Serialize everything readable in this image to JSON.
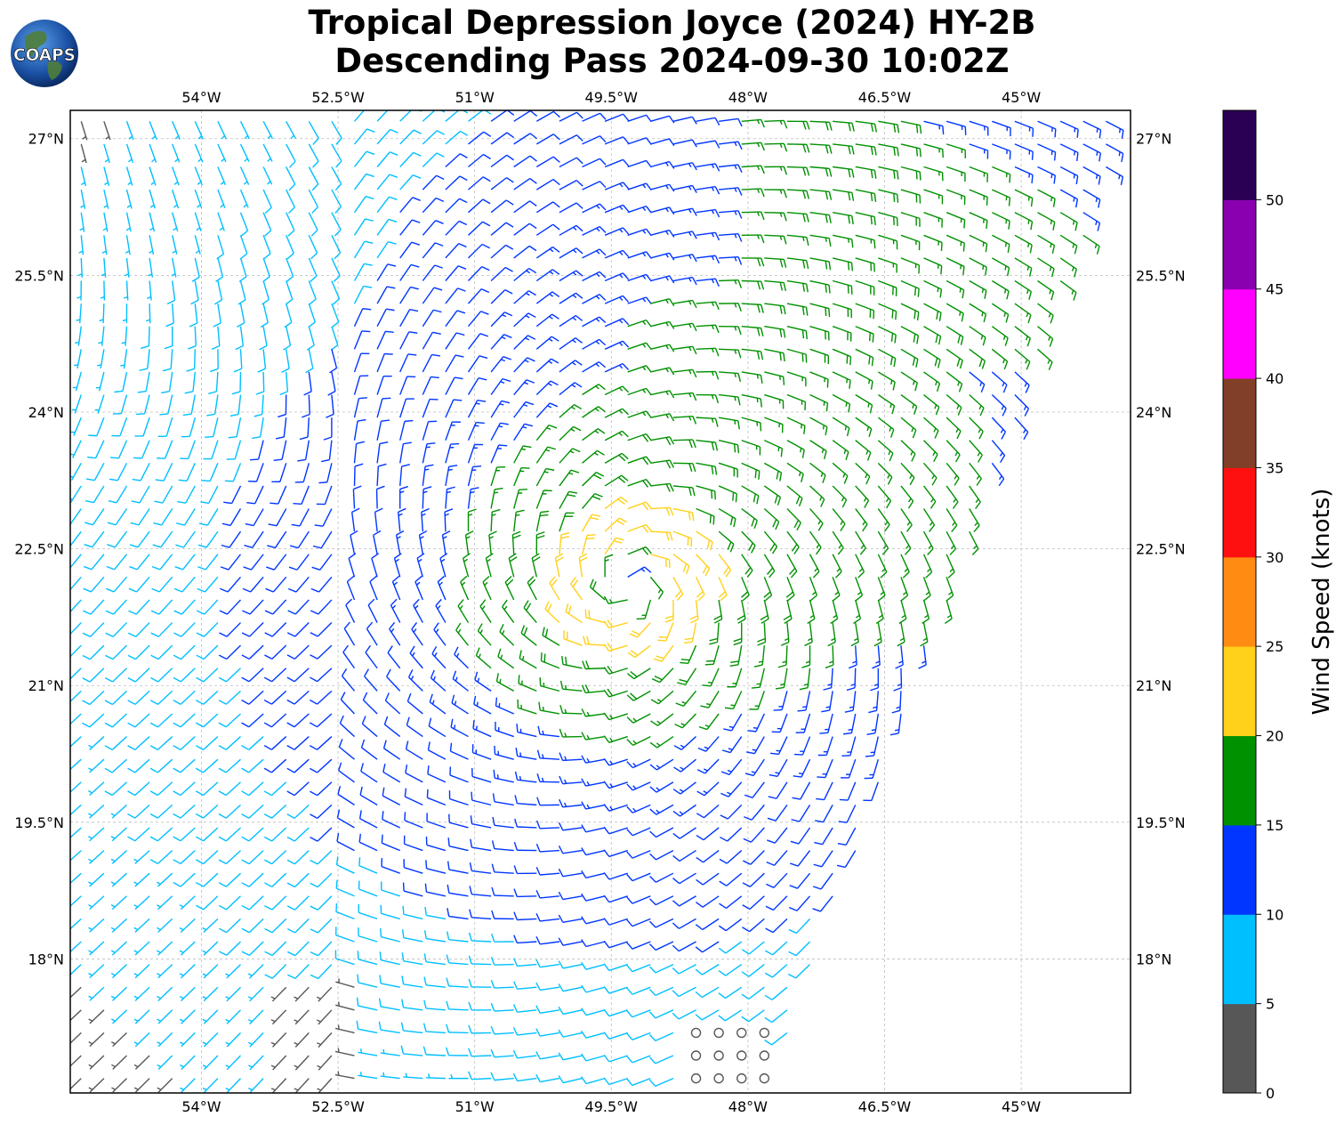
{
  "title": {
    "line1": "Tropical Depression Joyce (2024) HY-2B",
    "line2": "Descending Pass 2024-09-30 10:02Z"
  },
  "logo": {
    "text": "COAPS",
    "icon": "earth-globe-icon"
  },
  "map": {
    "lon_range": [
      -55.44,
      -43.8
    ],
    "lat_range": [
      16.53,
      27.31
    ],
    "lon_ticks": [
      {
        "value": -54.0,
        "label": "54°W"
      },
      {
        "value": -52.5,
        "label": "52.5°W"
      },
      {
        "value": -51.0,
        "label": "51°W"
      },
      {
        "value": -49.5,
        "label": "49.5°W"
      },
      {
        "value": -48.0,
        "label": "48°W"
      },
      {
        "value": -46.5,
        "label": "46.5°W"
      },
      {
        "value": -45.0,
        "label": "45°W"
      }
    ],
    "lat_ticks": [
      {
        "value": 27.0,
        "label": "27°N"
      },
      {
        "value": 25.5,
        "label": "25.5°N"
      },
      {
        "value": 24.0,
        "label": "24°N"
      },
      {
        "value": 22.5,
        "label": "22.5°N"
      },
      {
        "value": 21.0,
        "label": "21°N"
      },
      {
        "value": 19.5,
        "label": "19.5°N"
      },
      {
        "value": 18.0,
        "label": "18°N"
      }
    ],
    "gridlines": true,
    "swath": {
      "description_corners": [
        [
          -55.44,
          27.31
        ],
        [
          -43.8,
          27.3
        ],
        [
          -46.7,
          19.5
        ],
        [
          -47.6,
          17.0
        ],
        [
          -47.8,
          16.53
        ],
        [
          -55.44,
          16.53
        ]
      ],
      "corners": [
        [
          -55.44,
          27.31
        ],
        [
          -43.8,
          27.3
        ],
        [
          -46.7,
          19.5
        ],
        [
          -47.6,
          17.0
        ],
        [
          -47.8,
          16.53
        ],
        [
          -55.44,
          16.53
        ]
      ]
    },
    "storm_center": {
      "lon": -49.3,
      "lat": 22.1
    }
  },
  "colorbar": {
    "title": "Wind Speed (knots)",
    "bins": [
      {
        "min": 0,
        "max": 5,
        "color": "#575757"
      },
      {
        "min": 5,
        "max": 10,
        "color": "#00bfff"
      },
      {
        "min": 10,
        "max": 15,
        "color": "#0036ff"
      },
      {
        "min": 15,
        "max": 20,
        "color": "#009100"
      },
      {
        "min": 20,
        "max": 25,
        "color": "#ffd11a"
      },
      {
        "min": 25,
        "max": 30,
        "color": "#ff8c12"
      },
      {
        "min": 30,
        "max": 35,
        "color": "#ff1010"
      },
      {
        "min": 35,
        "max": 40,
        "color": "#803f26"
      },
      {
        "min": 40,
        "max": 45,
        "color": "#ff00ff"
      },
      {
        "min": 45,
        "max": 50,
        "color": "#8a00b0"
      },
      {
        "min": 50,
        "max": 55,
        "color": "#2a0055"
      }
    ],
    "tick_labels": [
      "0",
      "5",
      "10",
      "15",
      "20",
      "25",
      "30",
      "35",
      "40",
      "45",
      "50"
    ]
  },
  "colors": {
    "grid": "#bdbdbd",
    "frame": "#000000"
  }
}
